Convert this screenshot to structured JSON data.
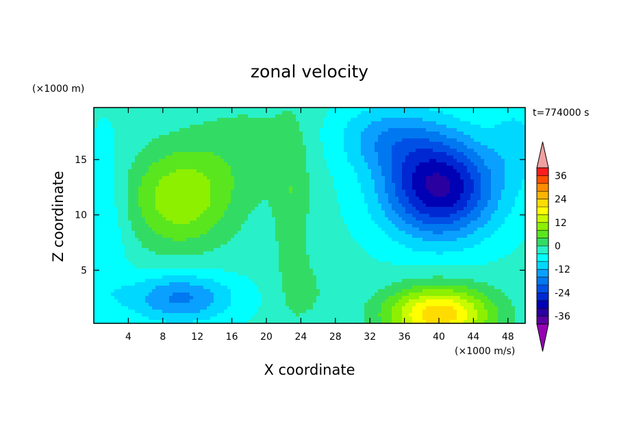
{
  "chart_data": {
    "type": "heatmap",
    "title": "zonal velocity",
    "xlabel": "X coordinate",
    "ylabel": "Z coordinate",
    "x_unit_label": "(×1000 m/s)",
    "y_unit_label": "(×1000 m)",
    "time_label": "t=774000 s",
    "xlim": [
      0,
      50
    ],
    "ylim": [
      0.2,
      19.7
    ],
    "x_ticks": [
      4,
      8,
      12,
      16,
      20,
      24,
      28,
      32,
      36,
      40,
      44,
      48
    ],
    "y_ticks": [
      5,
      10,
      15
    ],
    "colorbar": {
      "levels": [
        -40,
        -36,
        -32,
        -28,
        -24,
        -20,
        -16,
        -12,
        -8,
        -4,
        0,
        4,
        8,
        12,
        16,
        20,
        24,
        28,
        32,
        36,
        40
      ],
      "tick_labels": [
        "36",
        "24",
        "12",
        "0",
        "-12",
        "-24",
        "-36"
      ],
      "tick_values": [
        36,
        24,
        12,
        0,
        -12,
        -24,
        -36
      ],
      "colors": [
        "#5a00a0",
        "#2a00a0",
        "#0000b4",
        "#0028d2",
        "#0050e6",
        "#0078f0",
        "#0aa0ff",
        "#00d8ff",
        "#00ffff",
        "#28f0c8",
        "#32dc64",
        "#5ae61e",
        "#8cf000",
        "#c8fa00",
        "#ffff00",
        "#ffdc00",
        "#ffb400",
        "#ff8c00",
        "#ff5000",
        "#ff1e1e"
      ],
      "overflow_low": "#9600b4",
      "overflow_high": "#f0a0a0"
    },
    "features": [
      {
        "x": 10,
        "z": 11.5,
        "sx": 6,
        "sz": 4.5,
        "v": 14
      },
      {
        "x": 18,
        "z": 16,
        "sx": 7,
        "sz": 5,
        "v": 4
      },
      {
        "x": 10,
        "z": 2.5,
        "sx": 6,
        "sz": 2.2,
        "v": -14
      },
      {
        "x": 40,
        "z": 12.5,
        "sx": 6.5,
        "sz": 4.5,
        "v": -30
      },
      {
        "x": 34,
        "z": 17,
        "sx": 6,
        "sz": 3,
        "v": -10
      },
      {
        "x": 40,
        "z": 1,
        "sx": 6,
        "sz": 2.5,
        "v": 26
      },
      {
        "x": 23,
        "z": 10,
        "sx": 2,
        "sz": 8,
        "v": 6
      },
      {
        "x": 25,
        "z": 3,
        "sx": 3,
        "sz": 3,
        "v": 3
      },
      {
        "x": 1.5,
        "z": 9,
        "sx": 2.5,
        "sz": 8,
        "v": -5
      },
      {
        "x": 49,
        "z": 17,
        "sx": 3,
        "sz": 4,
        "v": -5
      }
    ],
    "base_value": -3
  }
}
